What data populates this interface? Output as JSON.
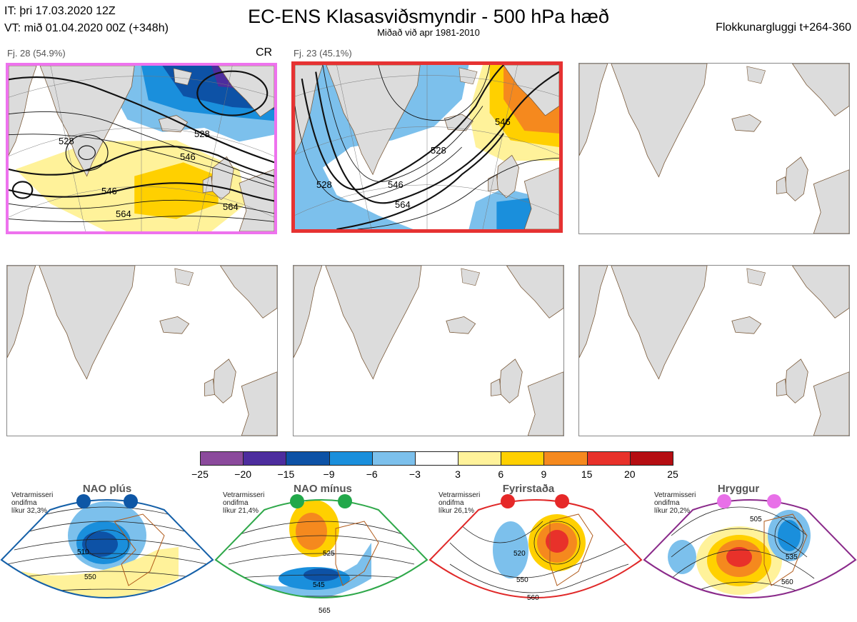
{
  "header": {
    "it_line": "IT: þri 17.03.2020 12Z",
    "vt_line": "VT: mið 01.04.2020 00Z  (+348h)",
    "title": "EC-ENS Klasasviðsmyndir - 500 hPa hæð",
    "subtitle": "Miðað við apr 1981-2010",
    "window": "Flokkunargluggi t+264-360"
  },
  "panels": [
    {
      "label": "Fj. 28 (54.9%)",
      "tag": "CR",
      "border": "#ee72ee",
      "contours": [
        "528",
        "546",
        "564",
        "528",
        "546",
        "564"
      ]
    },
    {
      "label": "Fj. 23 (45.1%)",
      "tag": "",
      "border": "#e63232",
      "contours": [
        "528",
        "546",
        "564",
        "528",
        "546"
      ]
    },
    {
      "label": "",
      "tag": "",
      "border": "",
      "contours": []
    },
    {
      "label": "",
      "tag": "",
      "border": "",
      "contours": []
    },
    {
      "label": "",
      "tag": "",
      "border": "",
      "contours": []
    },
    {
      "label": "",
      "tag": "",
      "border": "",
      "contours": []
    }
  ],
  "colorbar": {
    "ticks": [
      "−25",
      "−20",
      "−15",
      "−9",
      "−6",
      "−3",
      "3",
      "6",
      "9",
      "15",
      "20",
      "25"
    ],
    "colors": [
      "#8b4a9c",
      "#4d2d9e",
      "#0d52a6",
      "#1a8fdc",
      "#7cc0ec",
      "#ffffff",
      "#fff29a",
      "#ffd000",
      "#f5891e",
      "#e8312a",
      "#b50d12"
    ]
  },
  "patterns": [
    {
      "title": "NAO plús",
      "note": [
        "Vetrarmisseri",
        "ondifma",
        "líkur 32,3%"
      ],
      "color": "#1560a8",
      "dot": "#0e57a6",
      "contours": [
        "510",
        "550"
      ]
    },
    {
      "title": "NAO mínus",
      "note": [
        "Vetrarmisseri",
        "ondifma",
        "líkur 21,4%"
      ],
      "color": "#2fa84a",
      "dot": "#22a84a",
      "contours": [
        "525",
        "545",
        "565"
      ]
    },
    {
      "title": "Fyrirstaða",
      "note": [
        "Vetrarmisseri",
        "ondifma",
        "líkur 26,1%"
      ],
      "color": "#e02828",
      "dot": "#e62828",
      "contours": [
        "520",
        "550",
        "560"
      ]
    },
    {
      "title": "Hryggur",
      "note": [
        "Vetrarmisseri",
        "ondifma",
        "líkur 20,2%"
      ],
      "color": "#8a2a8a",
      "dot": "#e870e8",
      "contours": [
        "505",
        "535",
        "560"
      ]
    }
  ]
}
